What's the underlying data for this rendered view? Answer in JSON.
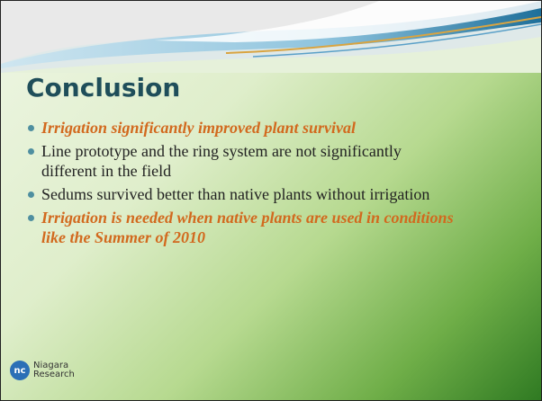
{
  "title": "Conclusion",
  "bullets": [
    "Irrigation significantly improved plant survival",
    "Line prototype  and the ring system are not significantly different in the field",
    "Sedums survived better than native plants without irrigation",
    "Irrigation is needed when native plants are used in conditions like the Summer of 2010"
  ],
  "logo": {
    "mark": "nc",
    "line1": "Niagara",
    "line2": "Research"
  }
}
